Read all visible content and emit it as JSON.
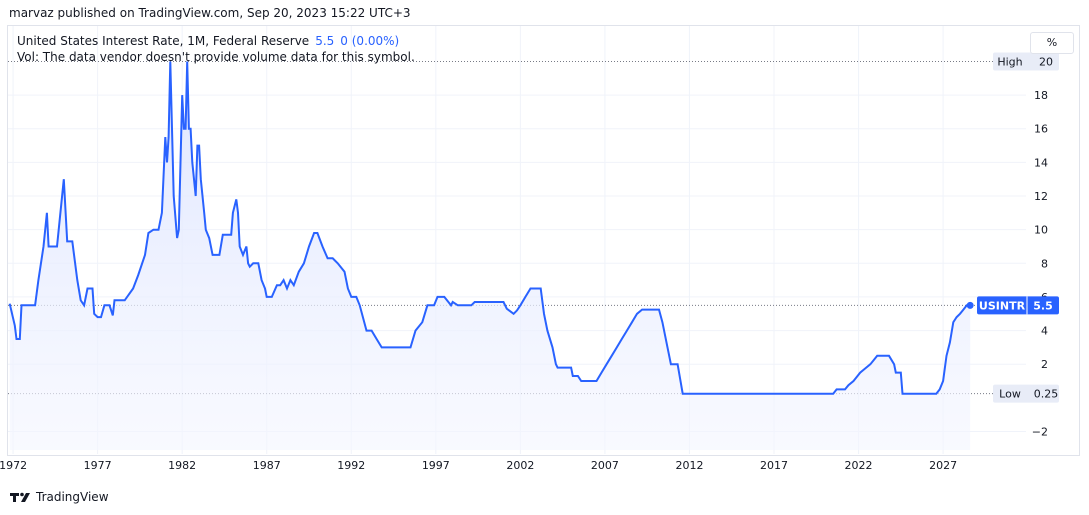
{
  "header": {
    "published_text": "marvaz published on TradingView.com, Sep 20, 2023 15:22 UTC+3"
  },
  "legend": {
    "title": "United States Interest Rate, 1M, Federal Reserve",
    "value": "5.5",
    "change": "0 (0.00%)",
    "vol_note": "Vol: The data vendor doesn't provide volume data for this symbol."
  },
  "controls": {
    "percent_label": "%"
  },
  "footer": {
    "brand": "TradingView",
    "logo_icon": "tradingview-logo-icon"
  },
  "colors": {
    "line": "#2962ff",
    "fill_top": "#dbe3ff",
    "fill_bottom": "#f4f6ff",
    "grid": "#f0f3fa",
    "dotted": "#787b86"
  },
  "chart_data": {
    "type": "area",
    "symbol": "USINTR",
    "last_value": 5.5,
    "high": {
      "label": "High",
      "value": 20
    },
    "low": {
      "label": "Low",
      "value": 0.25
    },
    "x_ticks": [
      "1972",
      "1977",
      "1982",
      "1987",
      "1992",
      "1997",
      "2002",
      "2007",
      "2012",
      "2017",
      "2022",
      "2027"
    ],
    "x_tick_values": [
      1972,
      1977,
      1982,
      1987,
      1992,
      1997,
      2002,
      2007,
      2012,
      2017,
      2022,
      2027
    ],
    "y_ticks": [
      "−2",
      "2",
      "4",
      "6",
      "8",
      "10",
      "12",
      "14",
      "16",
      "18"
    ],
    "y_tick_values": [
      -2,
      2,
      4,
      6,
      8,
      10,
      12,
      14,
      16,
      18
    ],
    "xlim": [
      1971.7,
      2029.3
    ],
    "ylim": [
      -3.1,
      20.8
    ],
    "grid": true,
    "series": [
      {
        "values": [
          [
            1971.8,
            5.6
          ],
          [
            1972.1,
            4.3
          ],
          [
            1972.2,
            3.5
          ],
          [
            1972.4,
            3.5
          ],
          [
            1972.5,
            5.5
          ],
          [
            1973.0,
            5.5
          ],
          [
            1973.3,
            5.5
          ],
          [
            1973.5,
            7.0
          ],
          [
            1973.8,
            9.0
          ],
          [
            1974.0,
            11.0
          ],
          [
            1974.1,
            9.0
          ],
          [
            1974.6,
            9.0
          ],
          [
            1974.9,
            12.0
          ],
          [
            1975.0,
            13.0
          ],
          [
            1975.2,
            9.3
          ],
          [
            1975.5,
            9.3
          ],
          [
            1975.8,
            7.0
          ],
          [
            1976.0,
            5.8
          ],
          [
            1976.2,
            5.5
          ],
          [
            1976.4,
            6.5
          ],
          [
            1976.7,
            6.5
          ],
          [
            1976.8,
            5.0
          ],
          [
            1977.0,
            4.8
          ],
          [
            1977.2,
            4.8
          ],
          [
            1977.4,
            5.5
          ],
          [
            1977.7,
            5.5
          ],
          [
            1977.9,
            4.9
          ],
          [
            1978.0,
            5.8
          ],
          [
            1978.6,
            5.8
          ],
          [
            1979.1,
            6.5
          ],
          [
            1979.4,
            7.3
          ],
          [
            1979.8,
            8.5
          ],
          [
            1980.0,
            9.8
          ],
          [
            1980.3,
            10.0
          ],
          [
            1980.6,
            10.0
          ],
          [
            1980.8,
            11.0
          ],
          [
            1981.0,
            15.5
          ],
          [
            1981.1,
            14.0
          ],
          [
            1981.2,
            15.5
          ],
          [
            1981.3,
            20.0
          ],
          [
            1981.5,
            12.0
          ],
          [
            1981.7,
            9.5
          ],
          [
            1981.8,
            10.0
          ],
          [
            1982.0,
            18.0
          ],
          [
            1982.1,
            16.0
          ],
          [
            1982.2,
            16.0
          ],
          [
            1982.3,
            20.0
          ],
          [
            1982.4,
            16.0
          ],
          [
            1982.5,
            16.0
          ],
          [
            1982.6,
            14.0
          ],
          [
            1982.8,
            12.0
          ],
          [
            1982.9,
            15.0
          ],
          [
            1983.0,
            15.0
          ],
          [
            1983.1,
            13.0
          ],
          [
            1983.2,
            12.0
          ],
          [
            1983.3,
            11.0
          ],
          [
            1983.4,
            10.0
          ],
          [
            1983.6,
            9.5
          ],
          [
            1983.8,
            8.5
          ],
          [
            1984.2,
            8.5
          ],
          [
            1984.4,
            9.7
          ],
          [
            1984.9,
            9.7
          ],
          [
            1985.0,
            11.0
          ],
          [
            1985.2,
            11.8
          ],
          [
            1985.3,
            11.0
          ],
          [
            1985.4,
            9.0
          ],
          [
            1985.6,
            8.5
          ],
          [
            1985.8,
            9.0
          ],
          [
            1985.9,
            8.0
          ],
          [
            1986.0,
            7.8
          ],
          [
            1986.2,
            8.0
          ],
          [
            1986.5,
            8.0
          ],
          [
            1986.7,
            7.0
          ],
          [
            1986.9,
            6.5
          ],
          [
            1987.0,
            6.0
          ],
          [
            1987.3,
            6.0
          ],
          [
            1987.6,
            6.7
          ],
          [
            1987.8,
            6.7
          ],
          [
            1988.0,
            7.0
          ],
          [
            1988.2,
            6.5
          ],
          [
            1988.4,
            7.0
          ],
          [
            1988.6,
            6.7
          ],
          [
            1988.9,
            7.5
          ],
          [
            1989.2,
            8.0
          ],
          [
            1989.5,
            9.0
          ],
          [
            1989.8,
            9.8
          ],
          [
            1990.0,
            9.8
          ],
          [
            1990.3,
            9.0
          ],
          [
            1990.6,
            8.3
          ],
          [
            1990.9,
            8.3
          ],
          [
            1991.2,
            8.0
          ],
          [
            1991.6,
            7.5
          ],
          [
            1991.8,
            6.5
          ],
          [
            1992.0,
            6.0
          ],
          [
            1992.3,
            6.0
          ],
          [
            1992.5,
            5.5
          ],
          [
            1992.9,
            4.0
          ],
          [
            1993.2,
            4.0
          ],
          [
            1993.5,
            3.5
          ],
          [
            1993.8,
            3.0
          ],
          [
            1994.2,
            3.0
          ],
          [
            1995.5,
            3.0
          ],
          [
            1995.8,
            4.0
          ],
          [
            1996.2,
            4.5
          ],
          [
            1996.5,
            5.5
          ],
          [
            1996.9,
            5.5
          ],
          [
            1997.1,
            6.0
          ],
          [
            1997.5,
            6.0
          ],
          [
            1997.9,
            5.5
          ],
          [
            1998.0,
            5.7
          ],
          [
            1998.3,
            5.5
          ],
          [
            1999.1,
            5.5
          ],
          [
            1999.3,
            5.7
          ],
          [
            2001.0,
            5.7
          ],
          [
            2001.2,
            5.3
          ],
          [
            2001.6,
            5.0
          ],
          [
            2001.8,
            5.2
          ],
          [
            2002.0,
            5.5
          ],
          [
            2002.3,
            6.0
          ],
          [
            2002.6,
            6.5
          ],
          [
            2003.2,
            6.5
          ],
          [
            2003.4,
            5.0
          ],
          [
            2003.6,
            4.0
          ],
          [
            2003.9,
            3.0
          ],
          [
            2004.1,
            2.0
          ],
          [
            2004.2,
            1.8
          ],
          [
            2005.0,
            1.8
          ],
          [
            2005.1,
            1.3
          ],
          [
            2005.4,
            1.3
          ],
          [
            2005.6,
            1.0
          ],
          [
            2006.5,
            1.0
          ],
          [
            2006.8,
            1.5
          ],
          [
            2007.1,
            2.0
          ],
          [
            2007.4,
            2.5
          ],
          [
            2007.7,
            3.0
          ],
          [
            2008.0,
            3.5
          ],
          [
            2008.3,
            4.0
          ],
          [
            2008.6,
            4.5
          ],
          [
            2008.9,
            5.0
          ],
          [
            2009.2,
            5.25
          ],
          [
            2010.2,
            5.25
          ],
          [
            2010.4,
            4.5
          ],
          [
            2010.7,
            3.0
          ],
          [
            2010.9,
            2.0
          ],
          [
            2011.3,
            2.0
          ],
          [
            2011.6,
            0.25
          ],
          [
            2020.5,
            0.25
          ],
          [
            2020.7,
            0.5
          ],
          [
            2021.2,
            0.5
          ],
          [
            2021.4,
            0.75
          ],
          [
            2021.7,
            1.0
          ],
          [
            2021.9,
            1.25
          ],
          [
            2022.1,
            1.5
          ],
          [
            2022.4,
            1.75
          ],
          [
            2022.7,
            2.0
          ],
          [
            2022.9,
            2.25
          ],
          [
            2023.1,
            2.5
          ],
          [
            2023.8,
            2.5
          ],
          [
            2024.1,
            2.0
          ],
          [
            2024.2,
            1.5
          ],
          [
            2024.5,
            1.5
          ],
          [
            2024.6,
            0.25
          ],
          [
            2026.6,
            0.25
          ],
          [
            2026.8,
            0.5
          ],
          [
            2027.0,
            1.0
          ],
          [
            2027.2,
            2.5
          ],
          [
            2027.4,
            3.3
          ],
          [
            2027.6,
            4.5
          ],
          [
            2027.8,
            4.8
          ],
          [
            2028.0,
            5.0
          ],
          [
            2028.2,
            5.25
          ],
          [
            2028.4,
            5.5
          ],
          [
            2028.6,
            5.5
          ]
        ]
      }
    ]
  }
}
